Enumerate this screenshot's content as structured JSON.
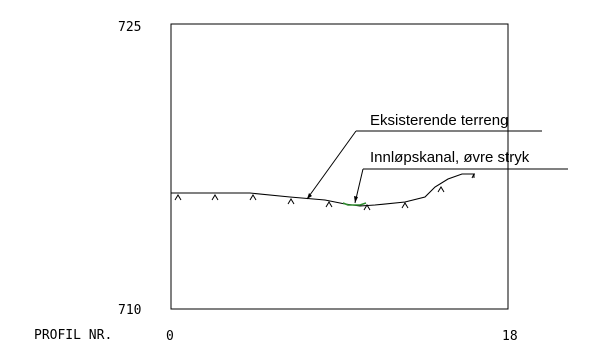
{
  "profile": {
    "elevation_top": "725",
    "elevation_bottom": "710",
    "station_start": "0",
    "station_end": "18",
    "profile_label": "PROFIL NR.",
    "annotations": {
      "existing_terrain": "Eksisterende terreng",
      "inlet_channel": "Innløpskanal, øvre stryk"
    },
    "colors": {
      "line": "#000000",
      "channel": "#2e8b2e",
      "background": "#ffffff"
    }
  }
}
